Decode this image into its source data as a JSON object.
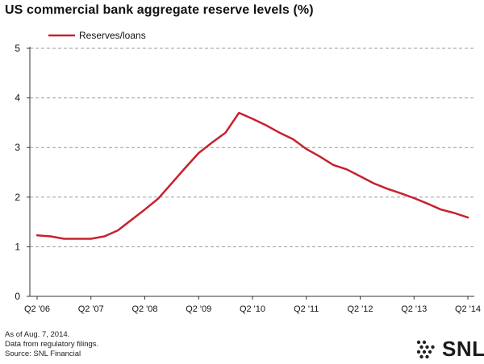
{
  "chart_data": {
    "type": "line",
    "title": "US commercial bank aggregate reserve levels (%)",
    "xlabel": "",
    "ylabel": "",
    "ylim": [
      0,
      5
    ],
    "yticks": [
      "0",
      "1",
      "2",
      "3",
      "4",
      "5"
    ],
    "xtick_labels": [
      "Q2 '06",
      "Q2 '07",
      "Q2 '08",
      "Q2 '09",
      "Q2 '10",
      "Q2 '11",
      "Q2 '12",
      "Q2 '13",
      "Q2 '14"
    ],
    "grid": "horizontal dashed",
    "legend_position": "top-left",
    "series": [
      {
        "name": "Reserves/loans",
        "color": "#c8202e",
        "x": [
          "Q2 '06",
          "Q3 '06",
          "Q4 '06",
          "Q1 '07",
          "Q2 '07",
          "Q3 '07",
          "Q4 '07",
          "Q1 '08",
          "Q2 '08",
          "Q3 '08",
          "Q4 '08",
          "Q1 '09",
          "Q2 '09",
          "Q3 '09",
          "Q4 '09",
          "Q1 '10",
          "Q2 '10",
          "Q3 '10",
          "Q4 '10",
          "Q1 '11",
          "Q2 '11",
          "Q3 '11",
          "Q4 '11",
          "Q1 '12",
          "Q2 '12",
          "Q3 '12",
          "Q4 '12",
          "Q1 '13",
          "Q2 '13",
          "Q3 '13",
          "Q4 '13",
          "Q1 '14",
          "Q2 '14"
        ],
        "values": [
          1.23,
          1.21,
          1.16,
          1.16,
          1.16,
          1.21,
          1.33,
          1.54,
          1.75,
          1.97,
          2.28,
          2.59,
          2.89,
          3.1,
          3.3,
          3.7,
          3.58,
          3.45,
          3.3,
          3.17,
          2.97,
          2.82,
          2.65,
          2.56,
          2.42,
          2.28,
          2.17,
          2.08,
          1.98,
          1.87,
          1.75,
          1.68,
          1.59
        ]
      }
    ]
  },
  "footnotes": [
    "As of Aug. 7, 2014.",
    "Data from regulatory filings.",
    "Source: SNL Financial"
  ],
  "logo": {
    "text": "SNL"
  }
}
